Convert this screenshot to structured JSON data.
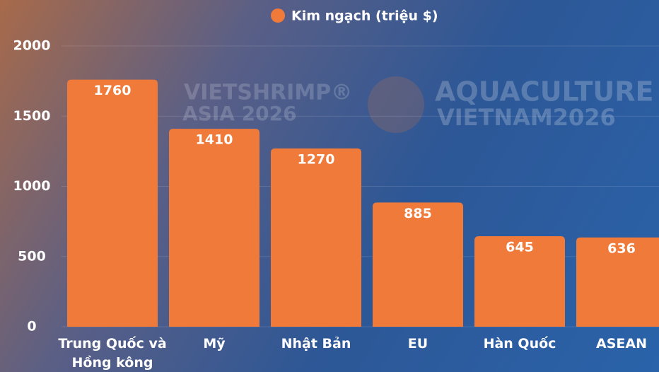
{
  "chart_data": {
    "type": "bar",
    "legend": "Kim ngạch (triệu $)",
    "categories": [
      "Trung Quốc và Hồng kông",
      "Mỹ",
      "Nhật Bản",
      "EU",
      "Hàn Quốc",
      "ASEAN"
    ],
    "values": [
      1760,
      1410,
      1270,
      885,
      645,
      636
    ],
    "color": "#f07a3a",
    "ylim": [
      0,
      2000
    ],
    "yticks": [
      0,
      500,
      1000,
      1500,
      2000
    ],
    "grid": true,
    "annotations": [
      "VIETSHRIMP®",
      "ASIA 2026",
      "AQUACULTURE",
      "VIETNAM2026"
    ]
  }
}
